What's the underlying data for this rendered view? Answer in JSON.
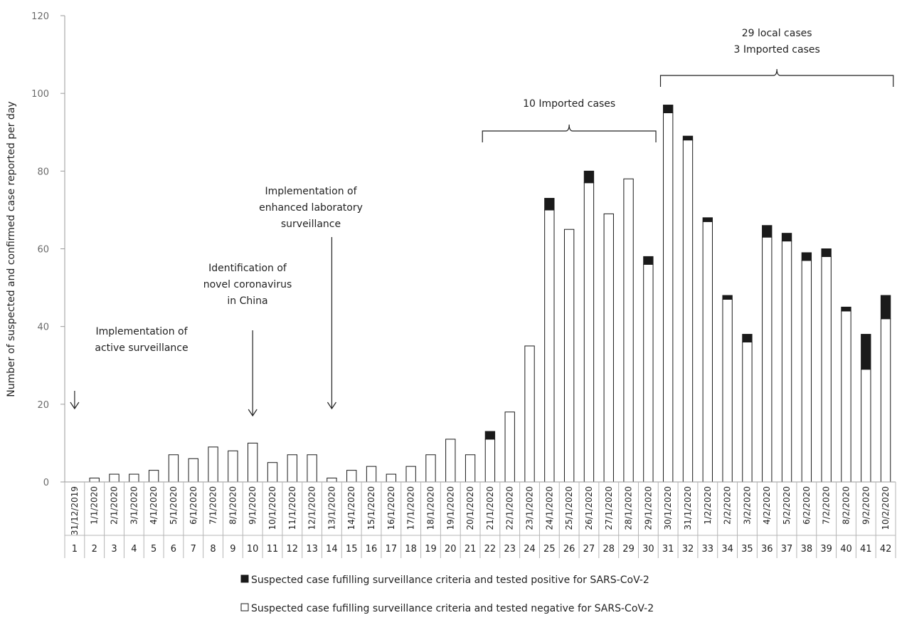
{
  "chart_data": {
    "type": "bar",
    "stacked": true,
    "ylabel": "Number of suspected and confirmed  case reported per day",
    "ylim": [
      0,
      120
    ],
    "yticks": [
      0,
      20,
      40,
      60,
      80,
      100,
      120
    ],
    "day_numbers": [
      1,
      2,
      3,
      4,
      5,
      6,
      7,
      8,
      9,
      10,
      11,
      12,
      13,
      14,
      15,
      16,
      17,
      18,
      19,
      20,
      21,
      22,
      23,
      24,
      25,
      26,
      27,
      28,
      29,
      30,
      31,
      32,
      33,
      34,
      35,
      36,
      37,
      38,
      39,
      40,
      41,
      42
    ],
    "categories": [
      "31/12/2019",
      "1/1/2020",
      "2/1/2020",
      "3/1/2020",
      "4/1/2020",
      "5/1/2020",
      "6/1/2020",
      "7/1/2020",
      "8/1/2020",
      "9/1/2020",
      "10/1/2020",
      "11/1/2020",
      "12/1/2020",
      "13/1/2020",
      "14/1/2020",
      "15/1/2020",
      "16/1/2020",
      "17/1/2020",
      "18/1/2020",
      "19/1/2020",
      "20/1/2020",
      "21/1/2020",
      "22/1/2020",
      "23/1/2020",
      "24/1/2020",
      "25/1/2020",
      "26/1/2020",
      "27/1/2020",
      "28/1/2020",
      "29/1/2020",
      "30/1/2020",
      "31/1/2020",
      "1/2/2020",
      "2/2/2020",
      "3/2/2020",
      "4/2/2020",
      "5/2/2020",
      "6/2/2020",
      "7/2/2020",
      "8/2/2020",
      "9/2/2020",
      "10/2/2020"
    ],
    "series": [
      {
        "name": "Suspected case fufilling surveillance criteria and tested negative for SARS-CoV-2",
        "color": "#ffffff",
        "values": [
          0,
          1,
          2,
          2,
          3,
          7,
          6,
          9,
          8,
          10,
          5,
          7,
          7,
          1,
          3,
          4,
          2,
          4,
          7,
          11,
          7,
          11,
          18,
          35,
          70,
          65,
          77,
          69,
          78,
          56,
          95,
          88,
          67,
          47,
          36,
          63,
          62,
          57,
          58,
          44,
          29,
          42
        ]
      },
      {
        "name": "Suspected case fufilling surveillance criteria and tested positive for SARS-CoV-2",
        "color": "#1a1a1a",
        "values": [
          0,
          0,
          0,
          0,
          0,
          0,
          0,
          0,
          0,
          0,
          0,
          0,
          0,
          0,
          0,
          0,
          0,
          0,
          0,
          0,
          0,
          2,
          0,
          0,
          3,
          0,
          3,
          0,
          0,
          2,
          2,
          1,
          1,
          1,
          2,
          3,
          2,
          2,
          2,
          1,
          9,
          6
        ]
      }
    ],
    "legend": {
      "placement": "bottom",
      "items": [
        {
          "label": "Suspected case fufilling surveillance criteria and tested positive for SARS-CoV-2",
          "color": "#1a1a1a"
        },
        {
          "label": "Suspected case fufilling surveillance criteria and tested negative for SARS-CoV-2",
          "color": "#ffffff"
        }
      ]
    },
    "annotations": [
      {
        "lines": [
          "Implementation of",
          "active surveillance"
        ],
        "day": 1,
        "arrow_top": 20
      },
      {
        "lines": [
          "Identification of",
          "novel coronavirus",
          "in China"
        ],
        "day": 10,
        "arrow_top": 40
      },
      {
        "lines": [
          "Implementation of",
          "enhanced laboratory",
          "surveillance"
        ],
        "day": 14,
        "arrow_top": 62
      }
    ],
    "braces": [
      {
        "lines": [
          "10 Imported cases"
        ],
        "from_day": 22,
        "to_day": 30
      },
      {
        "lines": [
          "29 local cases",
          "3 Imported cases"
        ],
        "from_day": 31,
        "to_day": 42
      }
    ]
  }
}
